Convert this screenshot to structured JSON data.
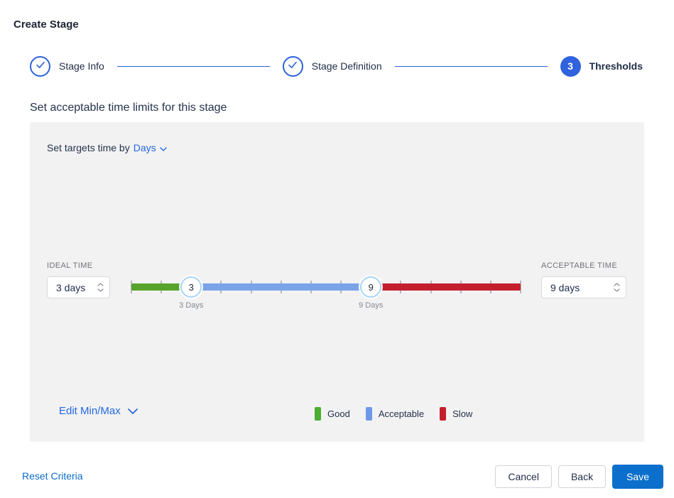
{
  "page": {
    "title": "Create Stage"
  },
  "stepper": {
    "steps": [
      {
        "label": "Stage Info",
        "state": "complete"
      },
      {
        "label": "Stage Definition",
        "state": "complete"
      },
      {
        "label": "Thresholds",
        "state": "active",
        "number": "3"
      }
    ]
  },
  "section": {
    "heading": "Set acceptable time limits for this stage"
  },
  "panel": {
    "target_prefix": "Set targets time by",
    "target_unit": "Days",
    "ideal": {
      "label": "IDEAL TIME",
      "value": "3 days"
    },
    "acceptable": {
      "label": "ACCEPTABLE TIME",
      "value": "9 days"
    },
    "slider": {
      "min_day": 1,
      "max_day": 14,
      "ideal_day": 3,
      "acceptable_day": 9,
      "ideal_label": "3 Days",
      "acceptable_label": "9 Days"
    },
    "edit_minmax": "Edit Min/Max",
    "legend": [
      {
        "label": "Good",
        "color": "#4BAD31"
      },
      {
        "label": "Acceptable",
        "color": "#6E99E8"
      },
      {
        "label": "Slow",
        "color": "#C3202E"
      }
    ]
  },
  "footer": {
    "reset": "Reset Criteria",
    "cancel": "Cancel",
    "back": "Back",
    "save": "Save"
  },
  "colors": {
    "accent-blue": "#2F62DC",
    "link-blue": "#2368DE",
    "reset-blue": "#0E6CC8",
    "save-blue": "#0B6FCB",
    "good-green": "#57A32C",
    "acceptable-blue": "#7AA3E8",
    "slow-red": "#C3202E",
    "handle-ring": "#A9D5F3",
    "panel-bg": "#F2F2F3"
  }
}
